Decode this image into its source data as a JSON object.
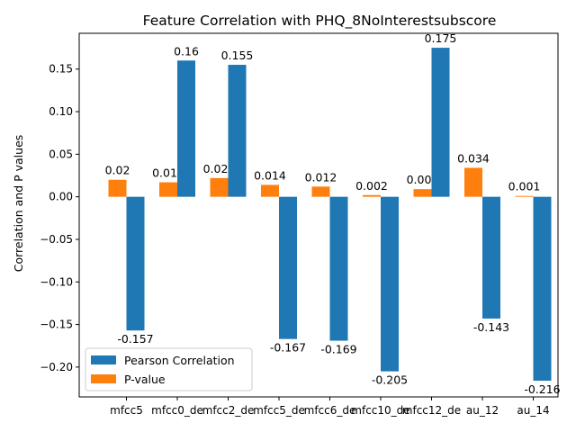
{
  "chart_data": {
    "type": "bar",
    "title": "Feature Correlation with PHQ_8NoInterestsubscore",
    "xlabel": "",
    "ylabel": "Correlation and P values",
    "categories": [
      "mfcc5",
      "mfcc0_de",
      "mfcc2_de",
      "mfcc5_de",
      "mfcc6_de",
      "mfcc10_de",
      "mfcc12_de",
      "au_12",
      "au_14"
    ],
    "series": [
      {
        "name": "Pearson Correlation",
        "color": "#1f77b4",
        "values": [
          -0.157,
          0.16,
          0.155,
          -0.167,
          -0.169,
          -0.205,
          0.175,
          -0.143,
          -0.216
        ]
      },
      {
        "name": "P-value",
        "color": "#ff7f0e",
        "values": [
          0.02,
          0.017,
          0.022,
          0.014,
          0.012,
          0.002,
          0.009,
          0.034,
          0.001
        ]
      }
    ],
    "ylim": [
      -0.235,
      0.192
    ],
    "yticks": [
      -0.2,
      -0.15,
      -0.1,
      -0.05,
      0.0,
      0.05,
      0.1,
      0.15
    ],
    "ytick_labels": [
      "−0.20",
      "−0.15",
      "−0.10",
      "−0.05",
      "0.00",
      "0.05",
      "0.10",
      "0.15"
    ],
    "grid": false,
    "legend_position": "lower-left"
  }
}
